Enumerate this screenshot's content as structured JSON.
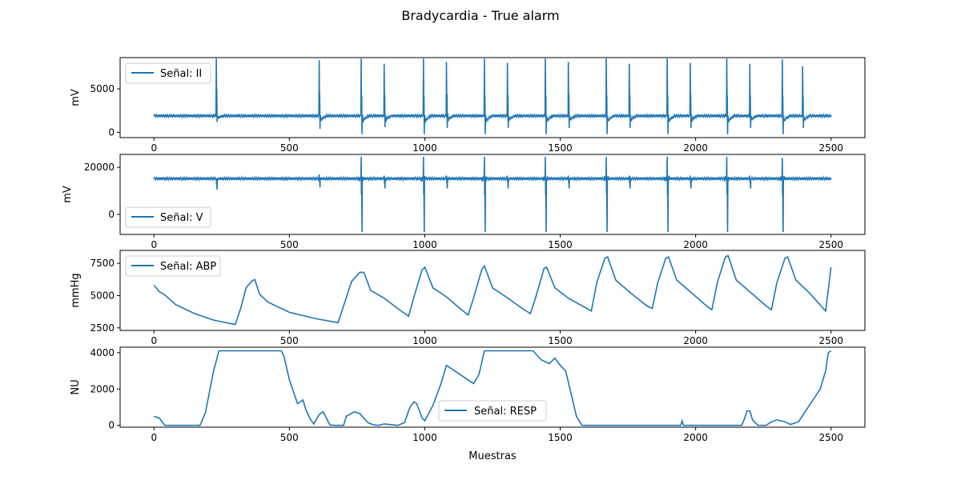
{
  "figure": {
    "title": "Bradycardia - True alarm",
    "xlabel": "Muestras"
  },
  "style": {
    "line_color": "#1f77b4",
    "axes_color": "#000000",
    "legend_border": "#cccccc"
  },
  "chart_data": [
    {
      "type": "line",
      "ylabel": "mV",
      "legend": {
        "label": "Señal: II",
        "placement": "upper left"
      },
      "xlim": [
        -125,
        2625
      ],
      "ylim": [
        -600,
        8600
      ],
      "xticks": [
        0,
        500,
        1000,
        1500,
        2000,
        2500
      ],
      "yticks": [
        0,
        5000
      ],
      "baseline": 1900,
      "beats": [
        230,
        610,
        765,
        850,
        995,
        1080,
        1220,
        1305,
        1445,
        1530,
        1670,
        1755,
        1895,
        1980,
        2115,
        2200,
        2320,
        2395
      ],
      "peaks": [
        8500,
        8300,
        8500,
        7900,
        8500,
        8100,
        8500,
        8000,
        8500,
        8100,
        8500,
        7900,
        8500,
        8000,
        8500,
        7900,
        8400,
        7600
      ],
      "troughs": [
        1200,
        400,
        -200,
        600,
        -200,
        500,
        -200,
        500,
        -200,
        500,
        -200,
        500,
        -200,
        500,
        -200,
        500,
        -200,
        500
      ],
      "grid": false
    },
    {
      "type": "line",
      "ylabel": "mV",
      "legend": {
        "label": "Señal: V",
        "placement": "lower left"
      },
      "xlim": [
        -125,
        2625
      ],
      "ylim": [
        -8500,
        25500
      ],
      "xticks": [
        0,
        500,
        1000,
        1500,
        2000,
        2500
      ],
      "yticks": [
        0,
        20000
      ],
      "baseline": 15200,
      "beats": [
        230,
        610,
        765,
        850,
        995,
        1080,
        1220,
        1305,
        1445,
        1530,
        1670,
        1755,
        1895,
        1980,
        2115,
        2200,
        2320
      ],
      "peaks": [
        15500,
        17000,
        24500,
        16500,
        24500,
        16500,
        24500,
        16500,
        24500,
        16500,
        24500,
        16500,
        24500,
        16500,
        24500,
        16500,
        24000
      ],
      "troughs": [
        10500,
        11500,
        -7500,
        11000,
        -7500,
        11000,
        -7500,
        11000,
        -7500,
        11000,
        -7500,
        11000,
        -7500,
        11000,
        -7500,
        11000,
        -7500
      ],
      "grid": false
    },
    {
      "type": "line",
      "ylabel": "mmHg",
      "legend": {
        "label": "Señal: ABP",
        "placement": "upper left"
      },
      "xlim": [
        -125,
        2625
      ],
      "ylim": [
        2300,
        8500
      ],
      "xticks": [
        0,
        500,
        1000,
        1500,
        2000,
        2500
      ],
      "yticks": [
        2500,
        5000,
        7500
      ],
      "x": [
        0,
        20,
        40,
        80,
        150,
        220,
        300,
        320,
        340,
        360,
        372,
        390,
        420,
        500,
        600,
        680,
        700,
        730,
        760,
        775,
        800,
        850,
        900,
        940,
        960,
        990,
        1000,
        1030,
        1080,
        1130,
        1160,
        1180,
        1210,
        1220,
        1250,
        1300,
        1360,
        1390,
        1410,
        1440,
        1450,
        1480,
        1530,
        1590,
        1615,
        1635,
        1665,
        1675,
        1705,
        1760,
        1820,
        1840,
        1860,
        1890,
        1900,
        1930,
        1980,
        2040,
        2060,
        2080,
        2110,
        2120,
        2150,
        2200,
        2260,
        2280,
        2300,
        2330,
        2340,
        2370,
        2420,
        2480,
        2500
      ],
      "values": [
        5800,
        5300,
        5050,
        4300,
        3600,
        3100,
        2750,
        4000,
        5600,
        6100,
        6250,
        5100,
        4500,
        3700,
        3200,
        2900,
        4200,
        6100,
        6800,
        6800,
        5400,
        4800,
        4000,
        3400,
        4900,
        7000,
        7200,
        5600,
        4900,
        4000,
        3500,
        4800,
        7000,
        7300,
        5600,
        4900,
        4000,
        3600,
        4900,
        7100,
        7200,
        5600,
        4800,
        4100,
        3800,
        6000,
        7900,
        8000,
        6200,
        5200,
        4200,
        4000,
        6000,
        7900,
        8000,
        6200,
        5300,
        4200,
        3900,
        6000,
        8000,
        8100,
        6200,
        5300,
        4200,
        3900,
        6000,
        7900,
        8000,
        6200,
        5200,
        3800,
        7200
      ],
      "grid": false
    },
    {
      "type": "line",
      "ylabel": "NU",
      "legend": {
        "label": "Señal: RESP",
        "placement": "lower center"
      },
      "xlim": [
        -125,
        2625
      ],
      "ylim": [
        -100,
        4300
      ],
      "xticks": [
        0,
        500,
        1000,
        1500,
        2000,
        2500
      ],
      "yticks": [
        0,
        2000,
        4000
      ],
      "x": [
        0,
        20,
        40,
        100,
        170,
        190,
        220,
        240,
        300,
        400,
        470,
        480,
        500,
        530,
        550,
        560,
        575,
        590,
        610,
        625,
        640,
        650,
        670,
        700,
        710,
        740,
        760,
        790,
        810,
        830,
        850,
        900,
        925,
        945,
        960,
        970,
        990,
        1000,
        1030,
        1060,
        1080,
        1100,
        1130,
        1160,
        1180,
        1200,
        1220,
        1250,
        1300,
        1350,
        1400,
        1430,
        1460,
        1480,
        1500,
        1520,
        1560,
        1580,
        1700,
        1900,
        1945,
        1950,
        1955,
        2000,
        2170,
        2180,
        2190,
        2200,
        2210,
        2230,
        2260,
        2280,
        2300,
        2330,
        2350,
        2380,
        2420,
        2460,
        2480,
        2490,
        2500
      ],
      "values": [
        500,
        400,
        0,
        0,
        0,
        700,
        3000,
        4100,
        4100,
        4100,
        4100,
        3800,
        2500,
        1200,
        1400,
        900,
        400,
        80,
        600,
        750,
        300,
        20,
        0,
        0,
        500,
        750,
        650,
        150,
        30,
        0,
        80,
        0,
        150,
        1000,
        1300,
        1200,
        400,
        250,
        1100,
        2300,
        3300,
        3100,
        2800,
        2500,
        2300,
        2800,
        4100,
        4100,
        4100,
        4100,
        4100,
        3600,
        3400,
        3700,
        3300,
        3000,
        500,
        0,
        0,
        0,
        0,
        250,
        0,
        0,
        0,
        350,
        800,
        800,
        300,
        0,
        0,
        200,
        300,
        200,
        50,
        200,
        1100,
        2000,
        3000,
        4000,
        4100
      ],
      "grid": false
    }
  ]
}
